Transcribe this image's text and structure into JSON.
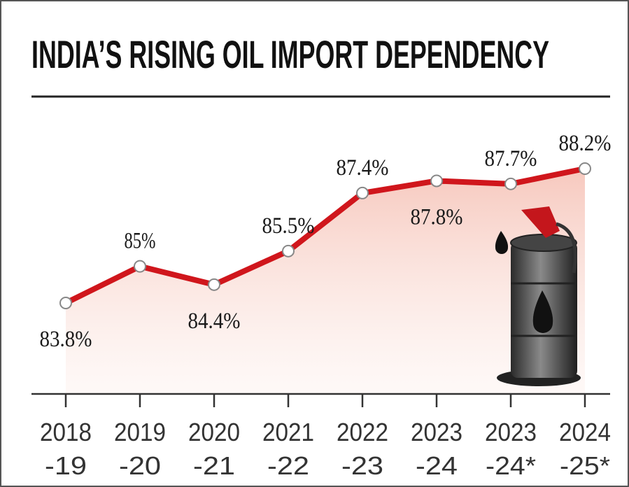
{
  "chart_data": {
    "type": "line",
    "title": "INDIA’S RISING OIL IMPORT DEPENDENCY",
    "categories": [
      [
        "2018",
        "-19"
      ],
      [
        "2019",
        "-20"
      ],
      [
        "2020",
        "-21"
      ],
      [
        "2021",
        "-22"
      ],
      [
        "2022",
        "-23"
      ],
      [
        "2023",
        "-24"
      ],
      [
        "2023",
        "-24*"
      ],
      [
        "2024",
        "-25*"
      ]
    ],
    "values": [
      83.8,
      85,
      84.4,
      85.5,
      87.4,
      87.8,
      87.7,
      88.2
    ],
    "value_labels": [
      "83.8%",
      "85%",
      "84.4%",
      "85.5%",
      "87.4%",
      "87.8%",
      "87.7%",
      "88.2%"
    ],
    "color": "#d0161c"
  }
}
